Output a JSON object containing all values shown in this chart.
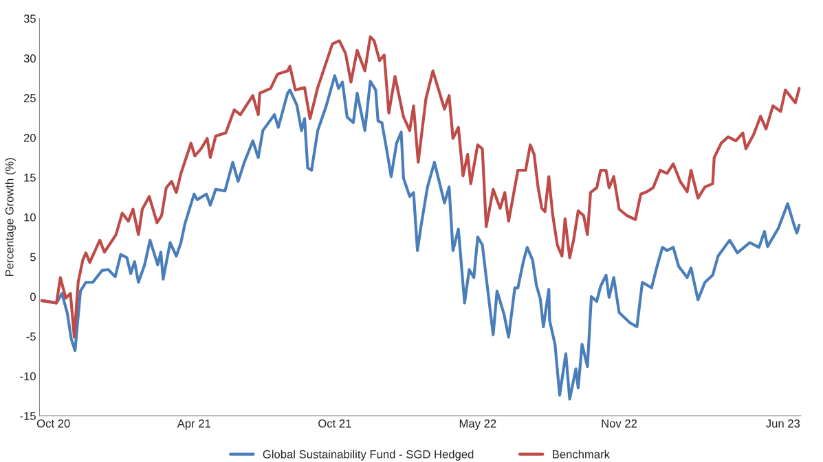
{
  "chart_data": {
    "type": "line",
    "ylabel": "Percentage Growth (%)",
    "xlim": [
      "2020-10-12",
      "2023-06-24"
    ],
    "xticks": [
      {
        "value": "2020-10-30",
        "label": "Oct 20"
      },
      {
        "value": "2021-04-30",
        "label": "Apr 21"
      },
      {
        "value": "2021-10-29",
        "label": "Oct 21"
      },
      {
        "value": "2022-05-02",
        "label": "May 22"
      },
      {
        "value": "2022-11-01",
        "label": "Nov 22"
      },
      {
        "value": "2023-06-01",
        "label": "Jun 23"
      }
    ],
    "ylim": [
      -15,
      35
    ],
    "yticks": [
      -15,
      -10,
      -5,
      0,
      5,
      10,
      15,
      20,
      25,
      30,
      35
    ],
    "legend": "bottom",
    "line_style": "solid",
    "series": [
      {
        "name": "Global Sustainability Fund - SGD Hedged",
        "color": "#4a7ebb",
        "x": [
          "2020-10-15",
          "2020-11-03",
          "2020-11-10",
          "2020-11-17",
          "2020-11-22",
          "2020-11-27",
          "2020-12-04",
          "2020-12-11",
          "2020-12-20",
          "2021-01-01",
          "2021-01-09",
          "2021-01-18",
          "2021-01-25",
          "2021-02-02",
          "2021-02-07",
          "2021-02-12",
          "2021-02-17",
          "2021-02-25",
          "2021-03-04",
          "2021-03-14",
          "2021-03-18",
          "2021-03-21",
          "2021-03-30",
          "2021-04-07",
          "2021-04-13",
          "2021-04-18",
          "2021-04-30",
          "2021-05-04",
          "2021-05-16",
          "2021-05-21",
          "2021-05-28",
          "2021-06-09",
          "2021-06-19",
          "2021-06-26",
          "2021-07-04",
          "2021-07-15",
          "2021-07-22",
          "2021-07-28",
          "2021-08-12",
          "2021-08-17",
          "2021-08-29",
          "2021-09-01",
          "2021-09-10",
          "2021-09-16",
          "2021-09-20",
          "2021-09-24",
          "2021-09-29",
          "2021-10-07",
          "2021-10-18",
          "2021-10-29",
          "2021-11-03",
          "2021-11-08",
          "2021-11-14",
          "2021-11-22",
          "2021-11-27",
          "2021-12-07",
          "2021-12-14",
          "2021-12-21",
          "2021-12-24",
          "2021-12-29",
          "2022-01-04",
          "2022-01-10",
          "2022-01-17",
          "2022-01-23",
          "2022-01-26",
          "2022-02-03",
          "2022-02-08",
          "2022-02-13",
          "2022-02-18",
          "2022-02-26",
          "2022-03-07",
          "2022-03-20",
          "2022-03-26",
          "2022-03-31",
          "2022-04-07",
          "2022-04-15",
          "2022-04-21",
          "2022-04-27",
          "2022-05-02",
          "2022-05-08",
          "2022-05-13",
          "2022-05-22",
          "2022-05-27",
          "2022-06-05",
          "2022-06-11",
          "2022-06-19",
          "2022-06-23",
          "2022-06-30",
          "2022-07-05",
          "2022-07-12",
          "2022-07-17",
          "2022-07-22",
          "2022-07-26",
          "2022-08-02",
          "2022-08-03",
          "2022-08-10",
          "2022-08-16",
          "2022-08-24",
          "2022-08-29",
          "2022-09-06",
          "2022-09-09",
          "2022-09-14",
          "2022-09-21",
          "2022-09-26",
          "2022-10-03",
          "2022-10-08",
          "2022-10-15",
          "2022-10-19",
          "2022-10-25",
          "2022-11-01",
          "2022-11-15",
          "2022-11-24",
          "2022-12-01",
          "2022-12-13",
          "2022-12-20",
          "2022-12-27",
          "2023-01-02",
          "2023-01-10",
          "2023-01-17",
          "2023-01-28",
          "2023-02-02",
          "2023-02-11",
          "2023-02-20",
          "2023-03-02",
          "2023-03-09",
          "2023-03-24",
          "2023-04-03",
          "2023-04-19",
          "2023-05-01",
          "2023-05-08",
          "2023-05-12",
          "2023-05-26",
          "2023-06-07",
          "2023-06-15",
          "2023-06-19",
          "2023-06-22"
        ],
        "values": [
          -0.5,
          -0.8,
          0.4,
          -2.1,
          -5.3,
          -6.8,
          0.7,
          1.8,
          1.8,
          3.3,
          3.4,
          2.5,
          5.3,
          4.9,
          2.9,
          4.4,
          1.8,
          4,
          7.1,
          4,
          5.6,
          2.2,
          6.8,
          5.1,
          6.8,
          9.1,
          12.9,
          12.2,
          12.9,
          11.5,
          13.5,
          13.3,
          16.9,
          14.5,
          16.9,
          19.6,
          17.5,
          20.9,
          22.9,
          21.3,
          25.6,
          26,
          24.1,
          20.9,
          22.4,
          16.2,
          15.9,
          20.9,
          24,
          27.8,
          26.2,
          27,
          22.6,
          21.9,
          25.6,
          20.9,
          27.1,
          26,
          22.1,
          21.9,
          18.6,
          15.1,
          19.3,
          20.7,
          14.9,
          12.6,
          13.1,
          5.8,
          9.1,
          13.8,
          16.9,
          11.8,
          13.8,
          5.8,
          8.5,
          -0.8,
          3.4,
          2.4,
          7.5,
          6.5,
          2.4,
          -4.8,
          0.7,
          -2.2,
          -5.1,
          1.1,
          1.1,
          4.4,
          6.2,
          4.6,
          1.4,
          -0.3,
          -3.8,
          0.9,
          -3,
          -6,
          -12.4,
          -7.2,
          -12.9,
          -9.1,
          -11.5,
          -6,
          -8.8,
          0,
          -0.6,
          1.3,
          2.7,
          -0.1,
          2.4,
          -2,
          -3.3,
          -3.8,
          1.8,
          1.1,
          3.8,
          6.2,
          5.8,
          6.2,
          3.8,
          2.4,
          3.6,
          -0.4,
          1.8,
          2.7,
          5.1,
          7.1,
          5.5,
          6.8,
          6.2,
          8.2,
          6.3,
          8.6,
          11.7,
          9.1,
          8,
          9
        ]
      },
      {
        "name": "Benchmark",
        "color": "#be4b48",
        "x": [
          "2020-10-15",
          "2020-11-03",
          "2020-11-08",
          "2020-11-15",
          "2020-11-21",
          "2020-11-26",
          "2020-12-01",
          "2020-12-07",
          "2020-12-11",
          "2020-12-16",
          "2020-12-29",
          "2021-01-04",
          "2021-01-19",
          "2021-01-27",
          "2021-02-04",
          "2021-02-10",
          "2021-02-17",
          "2021-02-22",
          "2021-03-03",
          "2021-03-13",
          "2021-03-19",
          "2021-03-25",
          "2021-04-01",
          "2021-04-07",
          "2021-04-13",
          "2021-04-26",
          "2021-05-01",
          "2021-05-09",
          "2021-05-17",
          "2021-05-21",
          "2021-05-28",
          "2021-06-10",
          "2021-06-21",
          "2021-06-29",
          "2021-07-15",
          "2021-07-22",
          "2021-07-24",
          "2021-08-07",
          "2021-08-16",
          "2021-08-29",
          "2021-09-01",
          "2021-09-08",
          "2021-09-20",
          "2021-09-27",
          "2021-10-07",
          "2021-10-26",
          "2021-11-04",
          "2021-11-12",
          "2021-11-19",
          "2021-11-27",
          "2021-12-07",
          "2021-12-14",
          "2021-12-19",
          "2021-12-26",
          "2022-01-01",
          "2022-01-07",
          "2022-01-15",
          "2022-01-26",
          "2022-02-03",
          "2022-02-08",
          "2022-02-14",
          "2022-02-24",
          "2022-03-05",
          "2022-03-20",
          "2022-03-26",
          "2022-03-31",
          "2022-04-07",
          "2022-04-13",
          "2022-04-19",
          "2022-04-23",
          "2022-05-02",
          "2022-05-08",
          "2022-05-13",
          "2022-05-22",
          "2022-05-31",
          "2022-06-06",
          "2022-06-11",
          "2022-06-23",
          "2022-07-03",
          "2022-07-09",
          "2022-07-14",
          "2022-07-19",
          "2022-07-24",
          "2022-07-28",
          "2022-08-02",
          "2022-08-07",
          "2022-08-13",
          "2022-08-19",
          "2022-08-23",
          "2022-08-29",
          "2022-09-03",
          "2022-09-09",
          "2022-09-16",
          "2022-09-21",
          "2022-09-25",
          "2022-10-03",
          "2022-10-08",
          "2022-10-15",
          "2022-10-19",
          "2022-10-25",
          "2022-11-01",
          "2022-11-11",
          "2022-11-22",
          "2022-11-29",
          "2022-12-07",
          "2022-12-15",
          "2022-12-24",
          "2023-01-02",
          "2023-01-10",
          "2023-01-19",
          "2023-01-28",
          "2023-02-02",
          "2023-02-11",
          "2023-02-20",
          "2023-03-02",
          "2023-03-04",
          "2023-03-13",
          "2023-03-22",
          "2023-04-01",
          "2023-04-10",
          "2023-04-14",
          "2023-04-24",
          "2023-05-03",
          "2023-05-10",
          "2023-05-19",
          "2023-05-29",
          "2023-06-04",
          "2023-06-17",
          "2023-06-22"
        ],
        "values": [
          -0.5,
          -0.8,
          2.4,
          -0.2,
          0.4,
          -5.1,
          1.8,
          4.6,
          5.5,
          4.3,
          7.1,
          5.6,
          7.8,
          10.5,
          9.5,
          11,
          7.8,
          11,
          12.6,
          9.3,
          10.2,
          13.7,
          14.5,
          13.1,
          15.5,
          19.3,
          17.7,
          18.6,
          19.9,
          17.5,
          20.2,
          20.6,
          23.5,
          22.9,
          25.3,
          22.9,
          25.6,
          26.2,
          28,
          28.4,
          29,
          26,
          26.3,
          22.4,
          26.3,
          31.8,
          32.2,
          30.6,
          27,
          31,
          28.4,
          32.7,
          32.2,
          29.7,
          30.4,
          23.1,
          27.7,
          22.6,
          20.9,
          24,
          16.9,
          24.9,
          28.4,
          23.6,
          25.3,
          19.9,
          21.3,
          15.2,
          17.9,
          14.2,
          19.1,
          18.6,
          8.8,
          13.5,
          11.1,
          13.1,
          9.5,
          15.9,
          15.9,
          19.1,
          17.9,
          13.8,
          11.1,
          10.7,
          15.1,
          10.3,
          6.5,
          5.1,
          9.8,
          4.9,
          7.1,
          10.8,
          10.2,
          7.8,
          13.1,
          13.7,
          15.9,
          15.9,
          13.7,
          15.1,
          11,
          10.2,
          9.7,
          12.9,
          13.2,
          13.7,
          15.9,
          15.5,
          16.7,
          14.5,
          13.2,
          15.9,
          12.4,
          13.8,
          14.2,
          17.5,
          19.3,
          20.1,
          19.6,
          20.6,
          18.6,
          20.4,
          22.7,
          21.1,
          24,
          23.3,
          26,
          24.4,
          26.2
        ]
      }
    ]
  }
}
